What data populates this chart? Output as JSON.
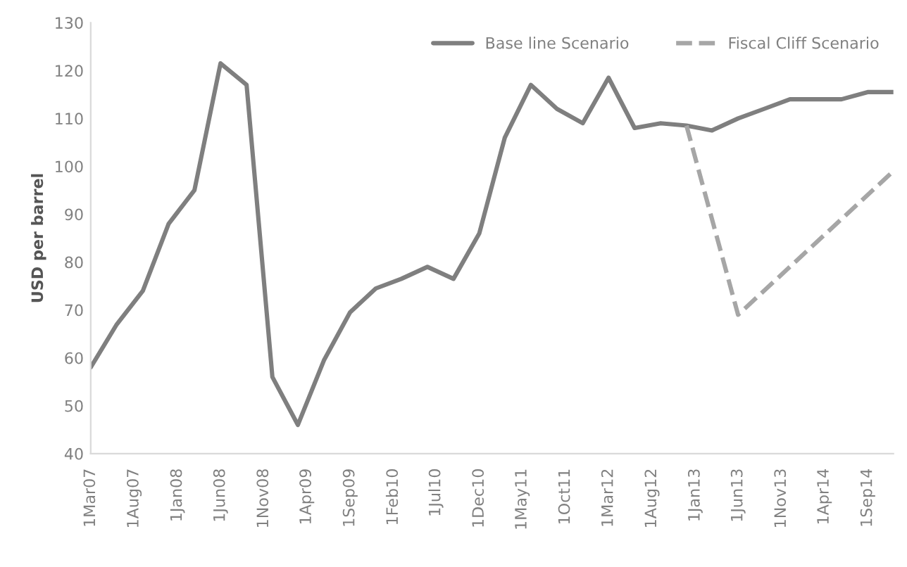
{
  "chart_data": {
    "type": "line",
    "ylabel": "USD per barrel",
    "x": [
      "2007-03",
      "2007-06",
      "2007-09",
      "2007-12",
      "2008-03",
      "2008-06",
      "2008-09",
      "2008-12",
      "2009-03",
      "2009-06",
      "2009-09",
      "2009-12",
      "2010-03",
      "2010-06",
      "2010-09",
      "2010-12",
      "2011-03",
      "2011-06",
      "2011-09",
      "2011-12",
      "2012-03",
      "2012-06",
      "2012-09",
      "2012-12",
      "2013-03",
      "2013-06",
      "2013-09",
      "2013-12",
      "2014-03",
      "2014-06",
      "2014-09",
      "2014-12"
    ],
    "series": [
      {
        "name": "Base line Scenario",
        "color": "#7f7f7f",
        "line_style": "solid",
        "values": [
          58,
          67,
          74,
          88,
          95,
          121.5,
          117,
          56,
          46,
          59.5,
          69.5,
          74.5,
          76.5,
          79,
          76.5,
          86,
          106,
          117,
          112,
          109,
          118.5,
          108,
          109,
          108.5,
          107.5,
          110,
          112,
          114,
          114,
          114,
          115.5,
          115.5
        ]
      },
      {
        "name": "Fiscal Cliff Scenario",
        "color": "#a6a6a6",
        "line_style": "dashed",
        "x": [
          "2012-12",
          "2013-06",
          "2014-12"
        ],
        "values": [
          108.5,
          69,
          99
        ]
      }
    ],
    "xlim": [
      "2007-03",
      "2014-12"
    ],
    "xticks": [
      {
        "value": "2007-03",
        "label": "1Mar07"
      },
      {
        "value": "2007-08",
        "label": "1Aug07"
      },
      {
        "value": "2008-01",
        "label": "1Jan08"
      },
      {
        "value": "2008-06",
        "label": "1Jun08"
      },
      {
        "value": "2008-11",
        "label": "1Nov08"
      },
      {
        "value": "2009-04",
        "label": "1Apr09"
      },
      {
        "value": "2009-09",
        "label": "1Sep09"
      },
      {
        "value": "2010-02",
        "label": "1Feb10"
      },
      {
        "value": "2010-07",
        "label": "1Jul10"
      },
      {
        "value": "2010-12",
        "label": "1Dec10"
      },
      {
        "value": "2011-05",
        "label": "1May11"
      },
      {
        "value": "2011-10",
        "label": "1Oct11"
      },
      {
        "value": "2012-03",
        "label": "1Mar12"
      },
      {
        "value": "2012-08",
        "label": "1Aug12"
      },
      {
        "value": "2013-01",
        "label": "1Jan13"
      },
      {
        "value": "2013-06",
        "label": "1Jun13"
      },
      {
        "value": "2013-11",
        "label": "1Nov13"
      },
      {
        "value": "2014-04",
        "label": "1Apr14"
      },
      {
        "value": "2014-09",
        "label": "1Sep14"
      }
    ],
    "ylim": [
      40,
      130
    ],
    "yticks": [
      40,
      50,
      60,
      70,
      80,
      90,
      100,
      110,
      120,
      130
    ],
    "grid": false,
    "legend": "top right"
  }
}
